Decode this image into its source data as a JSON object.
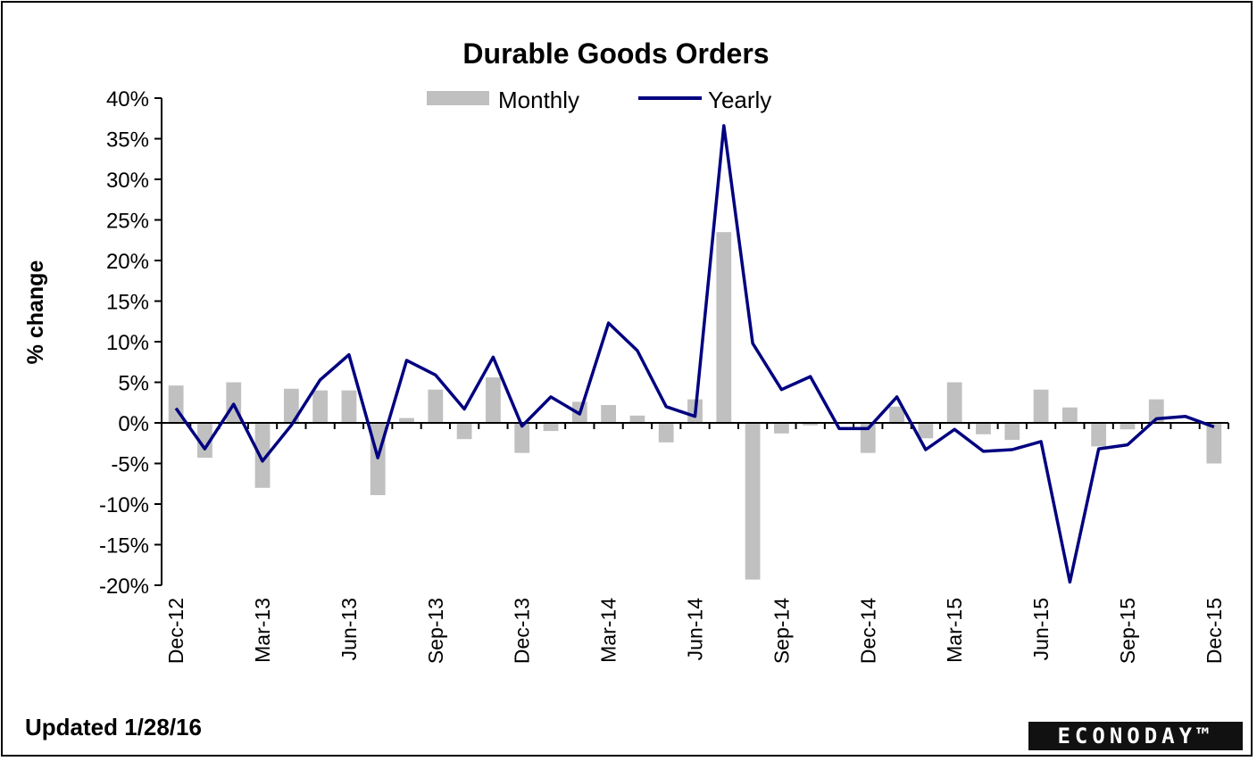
{
  "chart_data": {
    "type": "bar",
    "title": "Durable Goods  Orders",
    "xlabel": "",
    "ylabel": "% change",
    "ylim": [
      -20,
      40
    ],
    "yticks": [
      40,
      35,
      30,
      25,
      20,
      15,
      10,
      5,
      0,
      -5,
      -10,
      -15,
      -20
    ],
    "ytick_labels": [
      "40%",
      "35%",
      "30%",
      "25%",
      "20%",
      "15%",
      "10%",
      "5%",
      "0%",
      "-5%",
      "-10%",
      "-15%",
      "-20%"
    ],
    "legend_position": "top",
    "categories": [
      "Dec-12",
      "Jan-13",
      "Feb-13",
      "Mar-13",
      "Apr-13",
      "May-13",
      "Jun-13",
      "Jul-13",
      "Aug-13",
      "Sep-13",
      "Oct-13",
      "Nov-13",
      "Dec-13",
      "Jan-14",
      "Feb-14",
      "Mar-14",
      "Apr-14",
      "May-14",
      "Jun-14",
      "Jul-14",
      "Aug-14",
      "Sep-14",
      "Oct-14",
      "Nov-14",
      "Dec-14",
      "Jan-15",
      "Feb-15",
      "Mar-15",
      "Apr-15",
      "May-15",
      "Jun-15",
      "Jul-15",
      "Aug-15",
      "Sep-15",
      "Oct-15",
      "Nov-15",
      "Dec-15"
    ],
    "x_tick_labels": [
      "Dec-12",
      "Mar-13",
      "Jun-13",
      "Sep-13",
      "Dec-13",
      "Mar-14",
      "Jun-14",
      "Sep-14",
      "Dec-14",
      "Mar-15",
      "Jun-15",
      "Sep-15",
      "Dec-15"
    ],
    "series": [
      {
        "name": "Monthly",
        "type": "bar",
        "color": "#c0c0c0",
        "values": [
          4.6,
          -4.3,
          5.0,
          -8.0,
          4.2,
          4.0,
          4.0,
          -8.9,
          0.6,
          4.1,
          -2.0,
          5.6,
          -3.7,
          -1.0,
          2.6,
          2.2,
          0.9,
          -2.4,
          2.9,
          23.5,
          -19.3,
          -1.3,
          -0.3,
          0.1,
          -3.7,
          2.0,
          -1.9,
          5.0,
          -1.4,
          -2.1,
          4.1,
          1.9,
          -2.9,
          -0.8,
          2.9,
          -0.1,
          -5.0
        ]
      },
      {
        "name": "Yearly",
        "type": "line",
        "color": "#000080",
        "values": [
          1.8,
          -3.2,
          2.3,
          -4.7,
          -0.3,
          5.3,
          8.4,
          -4.3,
          7.7,
          5.9,
          1.7,
          8.1,
          -0.4,
          3.2,
          1.1,
          12.3,
          8.9,
          2.0,
          0.8,
          36.6,
          9.8,
          4.1,
          5.7,
          -0.7,
          -0.7,
          3.2,
          -3.3,
          -0.8,
          -3.5,
          -3.3,
          -2.3,
          -19.6,
          -3.2,
          -2.7,
          0.5,
          0.8,
          -0.5
        ]
      }
    ]
  },
  "footer": {
    "updated": "Updated 1/28/16",
    "logo": "ECONODAY™"
  }
}
